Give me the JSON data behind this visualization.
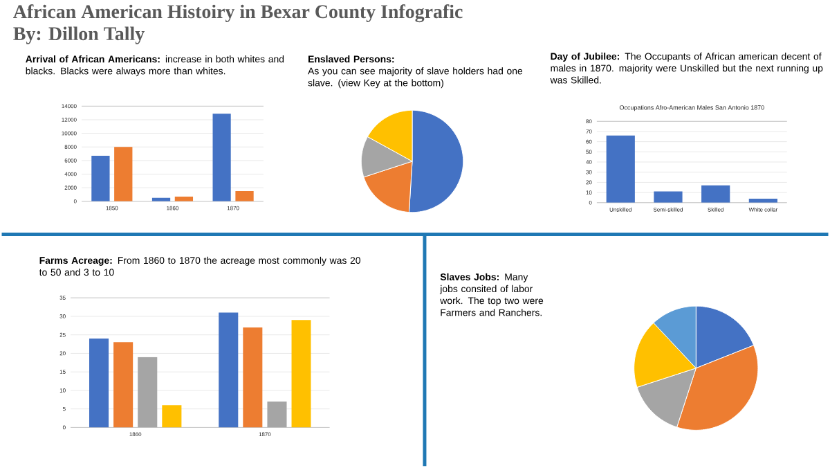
{
  "chart_data": [
    {
      "type": "bar",
      "title": "African American Histoiry in Bexar County Infografic",
      "subtitle": "By: Dillon Tally",
      "annotations": [
        "**Arrival of African Americans:** increase in both whites and blacks.  Blacks were always more than whites."
      ],
      "categories": [
        "1850",
        "1860",
        "1870"
      ],
      "series": [
        {
          "color": "#4472c4",
          "values": [
            6700,
            500,
            12900
          ]
        },
        {
          "color": "#ed7d31",
          "values": [
            8000,
            700,
            1500
          ]
        }
      ],
      "ylim": [
        0,
        14000
      ],
      "yticks": [
        0,
        2000,
        4000,
        6000,
        8000,
        10000,
        12000,
        14000
      ],
      "grid": "y"
    },
    {
      "type": "pie",
      "subtitle": "**Enslaved Persons:**\nAs you can see majority of slave holders had one slave. (view Key at the bottom)",
      "categories": [
        null,
        null,
        null,
        null
      ],
      "values": [
        51,
        19,
        13,
        17
      ],
      "colors": [
        "#4472c4",
        "#ed7d31",
        "#a5a5a5",
        "#ffc000"
      ]
    },
    {
      "type": "bar",
      "title": "Occupations Afro-American Males San Antonio 1870",
      "subtitle": "**Day of Jubilee:** The Occupants of African american decent of males in 1870. majority were Unskilled but the next running up was Skilled.",
      "categories": [
        "Unskilled",
        "Semi-skilled",
        "Skilled",
        "White collar"
      ],
      "values": [
        66,
        11,
        17,
        4
      ],
      "color": "#4472c4",
      "ylim": [
        0,
        80
      ],
      "yticks": [
        0,
        10,
        20,
        30,
        40,
        50,
        60,
        70,
        80
      ],
      "grid": "y"
    },
    {
      "type": "bar",
      "subtitle": "**Farms Acreage:** From 1860 to 1870 the acreage most commonly was 20 to 50 and 3 to 10",
      "categories": [
        "1860",
        "1870"
      ],
      "series": [
        {
          "color": "#4472c4",
          "values": [
            24,
            31
          ]
        },
        {
          "color": "#ed7d31",
          "values": [
            23,
            27
          ]
        },
        {
          "color": "#a5a5a5",
          "values": [
            19,
            7
          ]
        },
        {
          "color": "#ffc000",
          "values": [
            6,
            29
          ]
        }
      ],
      "ylim": [
        0,
        35
      ],
      "yticks": [
        0,
        5,
        10,
        15,
        20,
        25,
        30,
        35
      ],
      "grid": "y"
    },
    {
      "type": "pie",
      "subtitle": "**Slaves Jobs:** Many jobs consited of labor work. The top two were Farmers and Ranchers.",
      "categories": [
        null,
        null,
        null,
        null,
        null
      ],
      "values": [
        19,
        36,
        15,
        18,
        12
      ],
      "colors": [
        "#4472c4",
        "#ed7d31",
        "#a5a5a5",
        "#ffc000",
        "#5b9bd5"
      ]
    }
  ]
}
